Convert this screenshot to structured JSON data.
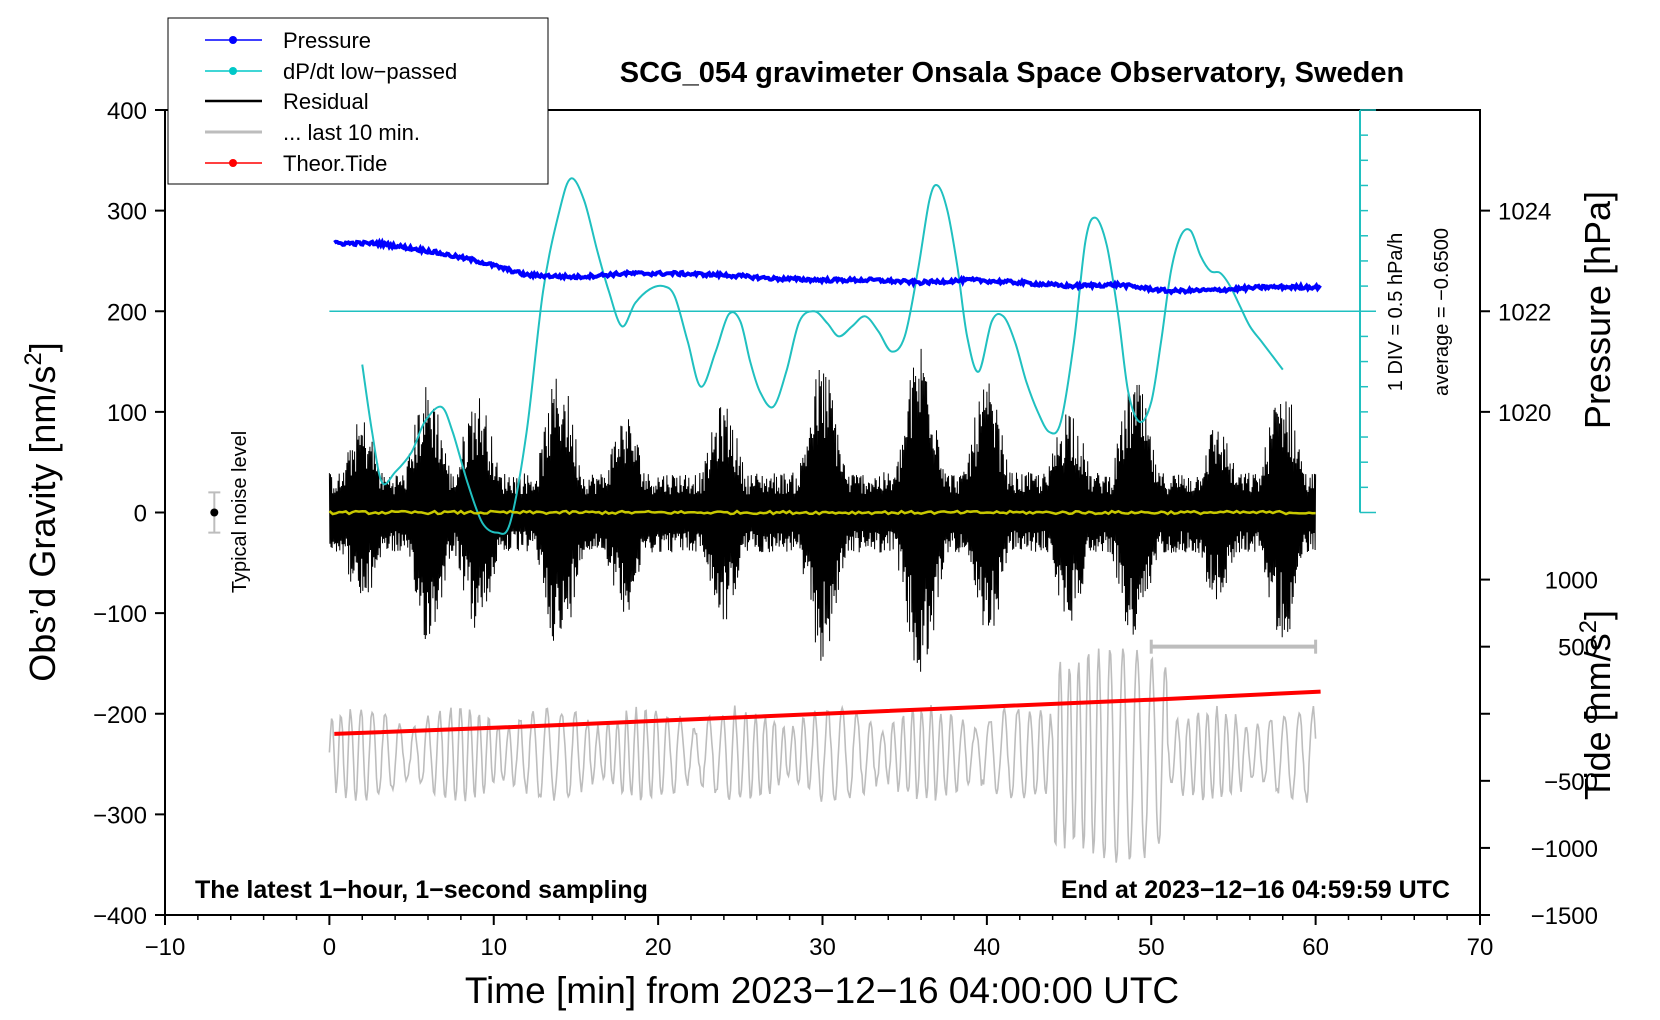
{
  "chart_data": {
    "type": "line",
    "title": "SCG_054 gravimeter Onsala Space Observatory, Sweden",
    "xlabel": "Time [min] from 2023−12−16 04:00:00 UTC",
    "ylabel_left": "Obs’d Gravity [nm/s",
    "ylabel_left_sup": "2",
    "ylabel_left_tail": "]",
    "ylabel_pressure": "Pressure [hPa]",
    "ylabel_tide": "Tide [nm/s",
    "ylabel_tide_sup": "2",
    "ylabel_tide_tail": "]",
    "xlim": [
      -10,
      70
    ],
    "ylim": [
      -400,
      400
    ],
    "x_ticks": [
      -10,
      0,
      10,
      20,
      30,
      40,
      50,
      60,
      70
    ],
    "x_tick_labels": [
      "−10",
      "0",
      "10",
      "20",
      "30",
      "40",
      "50",
      "60",
      "70"
    ],
    "y_ticks": [
      -400,
      -300,
      -200,
      -100,
      0,
      100,
      200,
      300,
      400
    ],
    "y_tick_labels": [
      "−400",
      "−300",
      "−200",
      "−100",
      "0",
      "100",
      "200",
      "300",
      "400"
    ],
    "pressure_axis": {
      "values": [
        1020,
        1022,
        1024
      ],
      "labels": [
        "1020",
        "1022",
        "1024"
      ],
      "gravity_at_1022": 200,
      "gravity_per_hPa": 50
    },
    "tide_axis": {
      "values": [
        1000,
        500,
        0,
        -500,
        -1000,
        -1500
      ],
      "labels": [
        "1000",
        "500",
        "0",
        "−500",
        "−1000",
        "−1500"
      ],
      "gravity_at_minus1500": -400,
      "gravity_per_nm": 0.13333
    },
    "legend": [
      {
        "label": "Pressure",
        "color": "#0000ff",
        "marker": true
      },
      {
        "label": "dP/dt low−passed",
        "color": "#00c8c8",
        "marker": true
      },
      {
        "label": "Residual",
        "color": "#000000",
        "marker": false
      },
      {
        "label": "... last 10 min.",
        "color": "#bdbdbd",
        "marker": false
      },
      {
        "label": "Theor.Tide",
        "color": "#ff0000",
        "marker": true
      }
    ],
    "legend_position": "top-left",
    "annotations": {
      "bottom_left": "The latest 1−hour, 1−second sampling",
      "bottom_right": "End at 2023−12−16 04:59:59 UTC",
      "dpdt_scale": "1 DIV = 0.5 hPa/h",
      "dpdt_average": "average = −0.6500",
      "noise_label": "Typical noise level"
    },
    "noise_level": {
      "x": -7,
      "value": 0,
      "half_range": 20
    },
    "last10_bar": {
      "x_start": 50,
      "x_end": 60,
      "tide_value": 500
    },
    "series": {
      "pressure": {
        "name": "Pressure",
        "color": "#0000ff",
        "unit": "hPa",
        "x": [
          0.3,
          3,
          6,
          9,
          12,
          15,
          18,
          21,
          24,
          27,
          30,
          33,
          36,
          39,
          42,
          45,
          48,
          51,
          54,
          57,
          60.3
        ],
        "y": [
          1023.35,
          1023.35,
          1023.2,
          1023.0,
          1022.72,
          1022.68,
          1022.75,
          1022.75,
          1022.72,
          1022.65,
          1022.62,
          1022.62,
          1022.57,
          1022.62,
          1022.57,
          1022.5,
          1022.53,
          1022.4,
          1022.42,
          1022.48,
          1022.48
        ]
      },
      "dpdt": {
        "name": "dP/dt low−passed",
        "color": "#20c0c0",
        "x": [
          2.0,
          2.6,
          3.2,
          4.0,
          5.0,
          5.8,
          6.8,
          7.5,
          8.4,
          9.3,
          10.2,
          11.0,
          12.0,
          13.0,
          14.0,
          14.7,
          15.5,
          16.3,
          17.0,
          17.8,
          18.6,
          19.5,
          20.3,
          21.0,
          21.8,
          22.6,
          23.5,
          24.3,
          25.0,
          25.6,
          26.2,
          27.0,
          27.8,
          28.6,
          29.5,
          30.3,
          31.0,
          31.8,
          32.6,
          33.4,
          34.2,
          35.0,
          35.8,
          36.5,
          37.0,
          37.6,
          38.2,
          38.8,
          39.5,
          40.3,
          41.0,
          41.7,
          42.4,
          43.1,
          43.8,
          44.5,
          45.3,
          46.0,
          46.6,
          47.3,
          48.0,
          48.6,
          49.3,
          50.0,
          50.6,
          51.2,
          51.8,
          52.4,
          53.0,
          53.6,
          54.2,
          54.8,
          55.4,
          56.0,
          56.7,
          57.4,
          58.0
        ],
        "y": [
          147,
          80,
          30,
          40,
          60,
          90,
          105,
          80,
          30,
          -10,
          -20,
          -10,
          80,
          220,
          300,
          332,
          310,
          260,
          220,
          185,
          208,
          222,
          225,
          215,
          170,
          125,
          160,
          197,
          190,
          150,
          120,
          105,
          140,
          190,
          200,
          188,
          175,
          185,
          195,
          180,
          160,
          175,
          240,
          310,
          325,
          300,
          245,
          175,
          140,
          190,
          195,
          170,
          130,
          100,
          80,
          90,
          170,
          270,
          293,
          265,
          195,
          120,
          90,
          110,
          170,
          240,
          275,
          280,
          255,
          240,
          238,
          225,
          205,
          185,
          170,
          155,
          142
        ]
      },
      "residual": {
        "name": "Residual",
        "color": "#000000",
        "x_start": 0,
        "x_end": 60,
        "peaks": [
          {
            "x": 2,
            "amp": 95
          },
          {
            "x": 6,
            "amp": 130
          },
          {
            "x": 9,
            "amp": 120
          },
          {
            "x": 14,
            "amp": 140
          },
          {
            "x": 18,
            "amp": 100
          },
          {
            "x": 24,
            "amp": 110
          },
          {
            "x": 30,
            "amp": 150
          },
          {
            "x": 36,
            "amp": 175
          },
          {
            "x": 40,
            "amp": 130
          },
          {
            "x": 45,
            "amp": 110
          },
          {
            "x": 49,
            "amp": 135
          },
          {
            "x": 54,
            "amp": 90
          },
          {
            "x": 58,
            "amp": 130
          }
        ]
      },
      "residual_smooth": {
        "name": "Residual (smoothed)",
        "color": "#c8c800",
        "value": 0
      },
      "last10": {
        "name": "... last 10 min.",
        "color": "#bdbdbd",
        "x_start": 0,
        "x_end": 60,
        "center": -240,
        "amplitude": 45
      },
      "tide": {
        "name": "Theor.Tide",
        "color": "#ff0000",
        "x": [
          0.3,
          10,
          20,
          30,
          40,
          50,
          60.3
        ],
        "y": [
          -220,
          -214,
          -207,
          -200,
          -193,
          -186,
          -178
        ]
      }
    }
  }
}
